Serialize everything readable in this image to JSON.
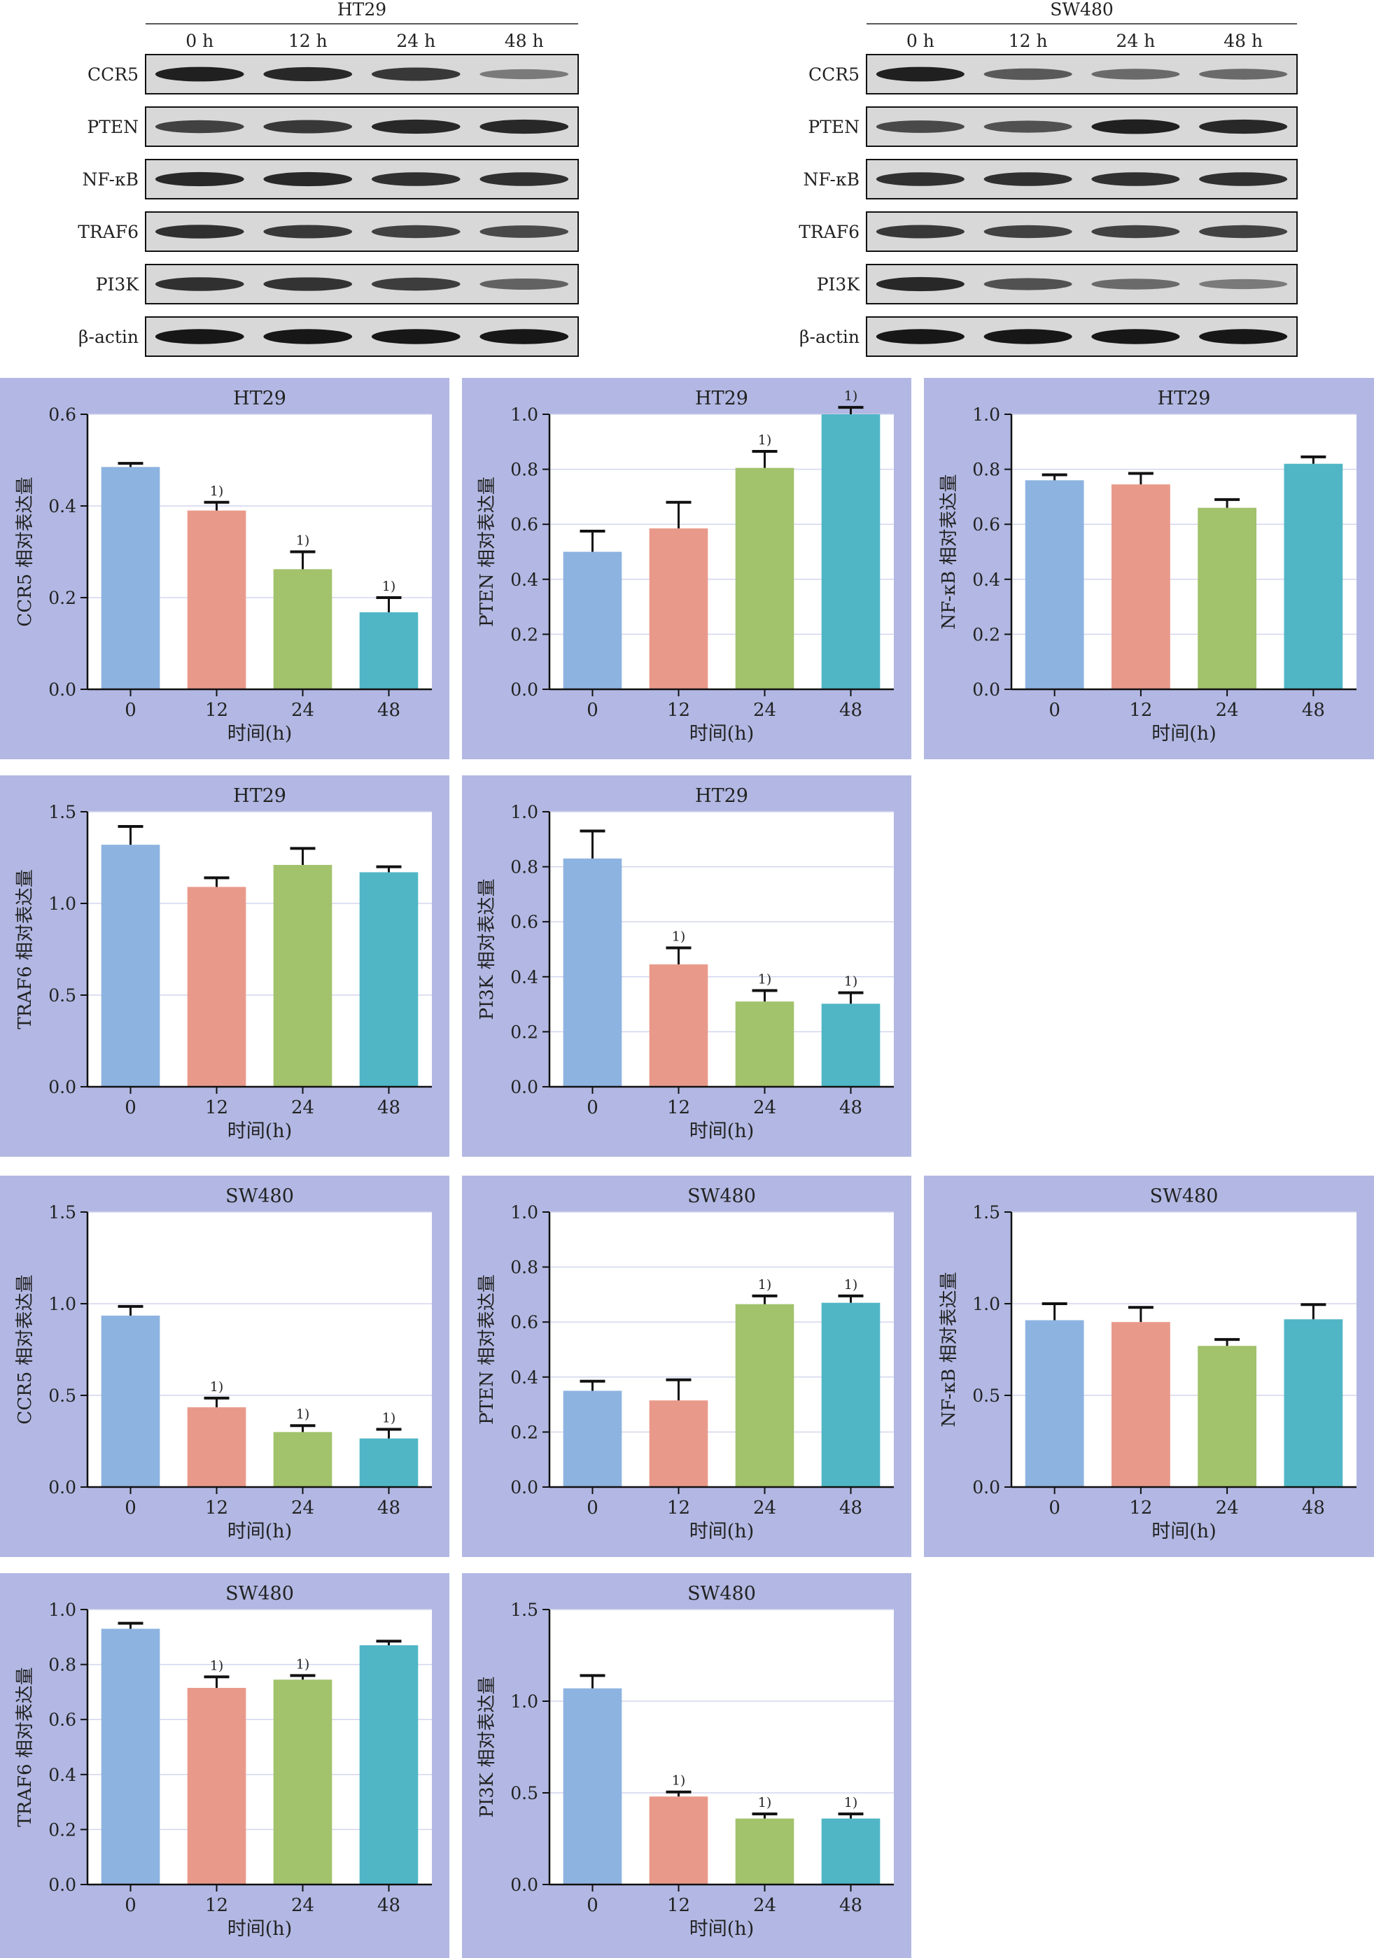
{
  "western_blot": {
    "panels": [
      {
        "title": "HT29",
        "lanes": [
          "0 h",
          "12 h",
          "24 h",
          "48 h"
        ],
        "proteins": [
          "CCR5",
          "PTEN",
          "NF-κB",
          "TRAF6",
          "PI3K",
          "β-actin"
        ],
        "band_intensity": [
          [
            0.9,
            0.85,
            0.75,
            0.35
          ],
          [
            0.7,
            0.75,
            0.85,
            0.85
          ],
          [
            0.85,
            0.85,
            0.8,
            0.8
          ],
          [
            0.8,
            0.75,
            0.7,
            0.65
          ],
          [
            0.8,
            0.78,
            0.72,
            0.5
          ],
          [
            0.95,
            0.95,
            0.95,
            0.95
          ]
        ]
      },
      {
        "title": "SW480",
        "lanes": [
          "0 h",
          "12 h",
          "24 h",
          "48 h"
        ],
        "proteins": [
          "CCR5",
          "PTEN",
          "NF-κB",
          "TRAF6",
          "PI3K",
          "β-actin"
        ],
        "band_intensity": [
          [
            0.9,
            0.55,
            0.45,
            0.45
          ],
          [
            0.65,
            0.6,
            0.9,
            0.85
          ],
          [
            0.8,
            0.8,
            0.8,
            0.8
          ],
          [
            0.75,
            0.7,
            0.7,
            0.7
          ],
          [
            0.85,
            0.6,
            0.45,
            0.35
          ],
          [
            0.95,
            0.95,
            0.95,
            0.95
          ]
        ]
      }
    ]
  },
  "colors": {
    "panel_bg": "#b2b8e3",
    "bars": [
      "#8db3e0",
      "#e9998a",
      "#a2c26b",
      "#50b6c6"
    ],
    "gridline": "#d3d6ee"
  },
  "chart_data": [
    {
      "type": "bar",
      "title": "HT29",
      "ylabel": "CCR5 相对表达量",
      "xlabel": "时间(h)",
      "categories": [
        "0",
        "12",
        "24",
        "48"
      ],
      "values": [
        0.485,
        0.39,
        0.262,
        0.168
      ],
      "errors": [
        0.008,
        0.018,
        0.038,
        0.032
      ],
      "sig": [
        "",
        "1)",
        "1)",
        "1)"
      ],
      "ylim": [
        0,
        0.6
      ],
      "yticks": [
        "0.0",
        "0.2",
        "0.4",
        "0.6"
      ]
    },
    {
      "type": "bar",
      "title": "HT29",
      "ylabel": "PTEN 相对表达量",
      "xlabel": "时间(h)",
      "categories": [
        "0",
        "12",
        "24",
        "48"
      ],
      "values": [
        0.5,
        0.585,
        0.805,
        1.0
      ],
      "errors": [
        0.075,
        0.095,
        0.06,
        0.025
      ],
      "sig": [
        "",
        "",
        "1)",
        "1)"
      ],
      "ylim": [
        0,
        1.0
      ],
      "yticks": [
        "0.0",
        "0.2",
        "0.4",
        "0.6",
        "0.8",
        "1.0"
      ]
    },
    {
      "type": "bar",
      "title": "HT29",
      "ylabel": "NF-κB 相对表达量",
      "xlabel": "时间(h)",
      "categories": [
        "0",
        "12",
        "24",
        "48"
      ],
      "values": [
        0.76,
        0.745,
        0.66,
        0.82
      ],
      "errors": [
        0.02,
        0.04,
        0.03,
        0.025
      ],
      "sig": [
        "",
        "",
        "",
        ""
      ],
      "ylim": [
        0,
        1.0
      ],
      "yticks": [
        "0.0",
        "0.2",
        "0.4",
        "0.6",
        "0.8",
        "1.0"
      ]
    },
    {
      "type": "bar",
      "title": "HT29",
      "ylabel": "TRAF6 相对表达量",
      "xlabel": "时间(h)",
      "categories": [
        "0",
        "12",
        "24",
        "48"
      ],
      "values": [
        1.32,
        1.09,
        1.21,
        1.17
      ],
      "errors": [
        0.1,
        0.05,
        0.09,
        0.03
      ],
      "sig": [
        "",
        "",
        "",
        ""
      ],
      "ylim": [
        0,
        1.5
      ],
      "yticks": [
        "0.0",
        "0.5",
        "1.0",
        "1.5"
      ]
    },
    {
      "type": "bar",
      "title": "HT29",
      "ylabel": "PI3K 相对表达量",
      "xlabel": "时间(h)",
      "categories": [
        "0",
        "12",
        "24",
        "48"
      ],
      "values": [
        0.83,
        0.445,
        0.31,
        0.302
      ],
      "errors": [
        0.1,
        0.06,
        0.04,
        0.04
      ],
      "sig": [
        "",
        "1)",
        "1)",
        "1)"
      ],
      "ylim": [
        0,
        1.0
      ],
      "yticks": [
        "0.0",
        "0.2",
        "0.4",
        "0.6",
        "0.8",
        "1.0"
      ]
    },
    {
      "type": "bar",
      "title": "SW480",
      "ylabel": "CCR5 相对表达量",
      "xlabel": "时间(h)",
      "categories": [
        "0",
        "12",
        "24",
        "48"
      ],
      "values": [
        0.935,
        0.435,
        0.3,
        0.265
      ],
      "errors": [
        0.05,
        0.05,
        0.035,
        0.05
      ],
      "sig": [
        "",
        "1)",
        "1)",
        "1)"
      ],
      "ylim": [
        0,
        1.5
      ],
      "yticks": [
        "0.0",
        "0.5",
        "1.0",
        "1.5"
      ]
    },
    {
      "type": "bar",
      "title": "SW480",
      "ylabel": "PTEN 相对表达量",
      "xlabel": "时间(h)",
      "categories": [
        "0",
        "12",
        "24",
        "48"
      ],
      "values": [
        0.35,
        0.315,
        0.665,
        0.67
      ],
      "errors": [
        0.035,
        0.075,
        0.03,
        0.025
      ],
      "sig": [
        "",
        "",
        "1)",
        "1)"
      ],
      "ylim": [
        0,
        1.0
      ],
      "yticks": [
        "0.0",
        "0.2",
        "0.4",
        "0.6",
        "0.8",
        "1.0"
      ]
    },
    {
      "type": "bar",
      "title": "SW480",
      "ylabel": "NF-κB 相对表达量",
      "xlabel": "时间(h)",
      "categories": [
        "0",
        "12",
        "24",
        "48"
      ],
      "values": [
        0.91,
        0.9,
        0.77,
        0.915
      ],
      "errors": [
        0.09,
        0.08,
        0.035,
        0.08
      ],
      "sig": [
        "",
        "",
        "",
        ""
      ],
      "ylim": [
        0,
        1.5
      ],
      "yticks": [
        "0.0",
        "0.5",
        "1.0",
        "1.5"
      ]
    },
    {
      "type": "bar",
      "title": "SW480",
      "ylabel": "TRAF6 相对表达量",
      "xlabel": "时间(h)",
      "categories": [
        "0",
        "12",
        "24",
        "48"
      ],
      "values": [
        0.93,
        0.715,
        0.745,
        0.87
      ],
      "errors": [
        0.02,
        0.04,
        0.015,
        0.015
      ],
      "sig": [
        "",
        "1)",
        "1)",
        ""
      ],
      "ylim": [
        0,
        1.0
      ],
      "yticks": [
        "0.0",
        "0.2",
        "0.4",
        "0.6",
        "0.8",
        "1.0"
      ]
    },
    {
      "type": "bar",
      "title": "SW480",
      "ylabel": "PI3K 相对表达量",
      "xlabel": "时间(h)",
      "categories": [
        "0",
        "12",
        "24",
        "48"
      ],
      "values": [
        1.07,
        0.48,
        0.36,
        0.36
      ],
      "errors": [
        0.07,
        0.025,
        0.025,
        0.025
      ],
      "sig": [
        "",
        "1)",
        "1)",
        "1)"
      ],
      "ylim": [
        0,
        1.5
      ],
      "yticks": [
        "0.0",
        "0.5",
        "1.0",
        "1.5"
      ]
    }
  ]
}
